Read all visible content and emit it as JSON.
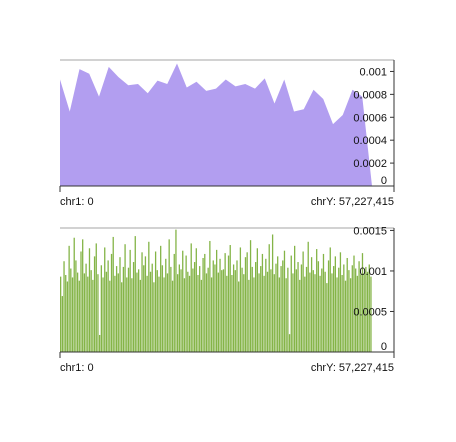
{
  "chart_data": [
    {
      "type": "area",
      "color": "#b29ef0",
      "x_range_labels": {
        "start": "chr1: 0",
        "end": "chrY: 57,227,415"
      },
      "ylim": [
        0,
        0.0011
      ],
      "y_ticks": [
        {
          "value": 0.001,
          "label": "0.001"
        },
        {
          "value": 0.0008,
          "label": "0.0008"
        },
        {
          "value": 0.0006,
          "label": "0.0006"
        },
        {
          "value": 0.0004,
          "label": "0.0004"
        },
        {
          "value": 0.0002,
          "label": "0.0002"
        },
        {
          "value": 0,
          "label": "0"
        }
      ],
      "values": [
        0.00093,
        0.00065,
        0.00102,
        0.00098,
        0.00078,
        0.00104,
        0.00095,
        0.00088,
        0.00089,
        0.00081,
        0.00092,
        0.00089,
        0.00107,
        0.00086,
        0.00091,
        0.00083,
        0.00085,
        0.00093,
        0.00087,
        0.00089,
        0.00085,
        0.00094,
        0.00072,
        0.00093,
        0.00065,
        0.00067,
        0.00084,
        0.00076,
        0.00054,
        0.00062,
        0.00084,
        0.00078,
        0.0
      ]
    },
    {
      "type": "bar",
      "color": "#84b447",
      "x_range_labels": {
        "start": "chr1: 0",
        "end": "chrY: 57,227,415"
      },
      "ylim": [
        0,
        0.00153
      ],
      "y_ticks": [
        {
          "value": 0.0015,
          "label": "0.0015"
        },
        {
          "value": 0.001,
          "label": "0.001"
        },
        {
          "value": 0.0005,
          "label": "0.0005"
        },
        {
          "value": 0,
          "label": "0"
        }
      ],
      "values": [
        0.00093,
        0.00069,
        0.00112,
        0.00095,
        0.00087,
        0.00131,
        0.00103,
        0.00092,
        0.00141,
        0.00113,
        0.00098,
        0.00088,
        0.00124,
        0.00139,
        0.00097,
        0.00109,
        0.00093,
        0.00128,
        0.00101,
        0.00089,
        0.00118,
        0.00134,
        0.00096,
        0.00021,
        0.00107,
        0.00092,
        0.00129,
        0.00099,
        0.00113,
        0.00088,
        0.00121,
        0.00142,
        0.00094,
        0.00106,
        0.00097,
        0.00117,
        0.00086,
        0.00105,
        0.00133,
        0.00092,
        0.00104,
        0.00126,
        0.00091,
        0.00111,
        0.00143,
        0.00098,
        0.00102,
        0.00089,
        0.00123,
        0.00107,
        0.00118,
        0.00094,
        0.00136,
        0.00099,
        0.00109,
        0.00086,
        0.00124,
        0.00101,
        0.00093,
        0.00131,
        0.00107,
        0.00092,
        0.00115,
        0.00097,
        0.00139,
        0.00105,
        0.00088,
        0.00121,
        0.00151,
        0.00096,
        0.00108,
        0.00102,
        0.00125,
        0.00091,
        0.00119,
        0.00099,
        0.00094,
        0.00134,
        0.00103,
        0.00111,
        0.00128,
        0.00095,
        0.00106,
        0.00089,
        0.00116,
        0.00121,
        0.00097,
        0.00104,
        0.00137,
        0.00092,
        0.00113,
        0.00108,
        0.00126,
        0.00098,
        0.00115,
        0.00101,
        0.00102,
        0.00122,
        0.00094,
        0.00119,
        0.00132,
        0.00095,
        0.00108,
        0.00101,
        0.00113,
        0.00087,
        0.00129,
        0.00104,
        0.00096,
        0.00117,
        0.00123,
        0.00089,
        0.00138,
        0.00105,
        0.00092,
        0.00111,
        0.00128,
        0.00097,
        0.00106,
        0.00121,
        0.00094,
        0.00115,
        0.00099,
        0.00133,
        0.00102,
        0.00145,
        0.00096,
        0.00109,
        0.00118,
        0.00092,
        0.00106,
        0.00113,
        0.00125,
        0.00091,
        0.00104,
        0.00022,
        0.00119,
        0.00097,
        0.00131,
        0.00102,
        0.00111,
        0.00089,
        0.00108,
        0.00124,
        0.00093,
        0.00105,
        0.00136,
        0.00098,
        0.00117,
        0.00101,
        0.00096,
        0.00127,
        0.00112,
        0.00094,
        0.00103,
        0.00121,
        0.00099,
        0.00085,
        0.00113,
        0.00129,
        0.00097,
        0.00106,
        0.00118,
        0.00092,
        0.00104,
        0.00123,
        0.00095,
        0.00108,
        0.00088,
        0.00116,
        0.00101,
        0.00091,
        0.00107,
        0.00119,
        0.00103,
        0.00094,
        0.00112,
        0.00096,
        0.00122,
        0.00097,
        0.00105,
        0.00099,
        0.00108,
        0.00093
      ]
    }
  ]
}
